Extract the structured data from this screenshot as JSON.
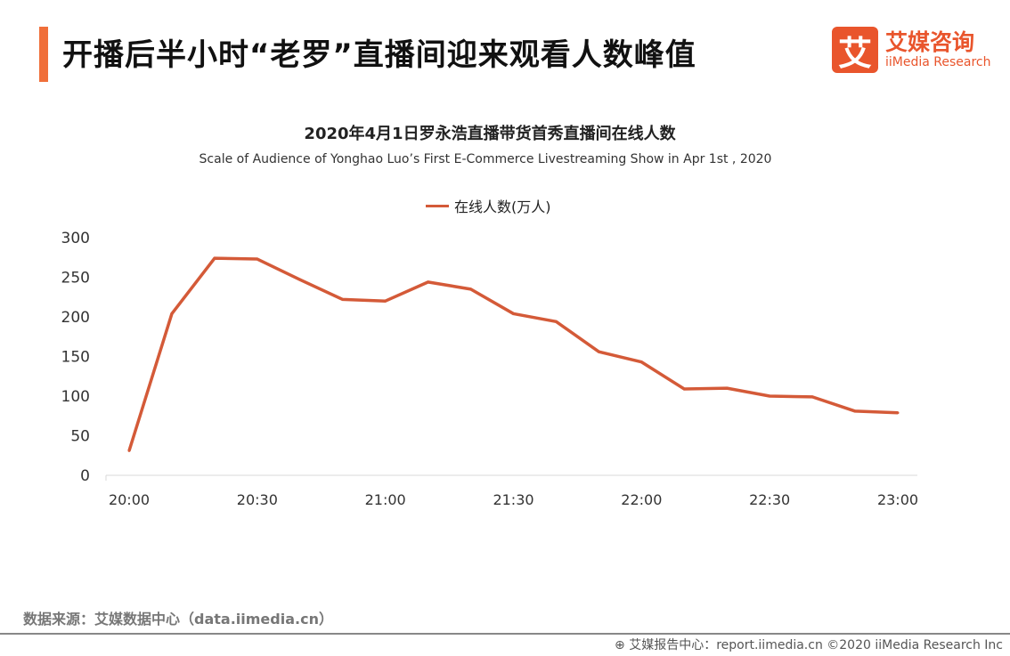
{
  "header": {
    "title": "开播后半小时“老罗”直播间迎来观看人数峰值",
    "logo_mark": "艾",
    "logo_cn": "艾媒咨询",
    "logo_en": "iiMedia Research"
  },
  "chart_data": {
    "type": "line",
    "title": "2020年4月1日罗永浩直播带货首秀直播间在线人数",
    "subtitle": "Scale of Audience of Yonghao Luo’s First E-Commerce Livestreaming Show in Apr 1st , 2020",
    "x": [
      "20:00",
      "20:10",
      "20:20",
      "20:30",
      "20:40",
      "20:50",
      "21:00",
      "21:10",
      "21:20",
      "21:30",
      "21:40",
      "21:50",
      "22:00",
      "22:10",
      "22:20",
      "22:30",
      "22:40",
      "22:50",
      "23:00"
    ],
    "xticks": [
      "20:00",
      "20:30",
      "21:00",
      "21:30",
      "22:00",
      "22:30",
      "23:00"
    ],
    "series": [
      {
        "name": "在线人数(万人)",
        "values": [
          31,
          204,
          274,
          273,
          247,
          222,
          220,
          244,
          235,
          204,
          194,
          156,
          143,
          109,
          110,
          100,
          99,
          81,
          79
        ],
        "color": "#d45a38"
      }
    ],
    "ylim": [
      0,
      300
    ],
    "yticks": [
      0,
      50,
      100,
      150,
      200,
      250,
      300
    ],
    "grid": false,
    "legend": "top-center"
  },
  "footer": {
    "source": "数据来源：艾媒数据中心（data.iimedia.cn）",
    "copyright": "艾媒报告中心：report.iimedia.cn  ©2020  iiMedia Research  Inc"
  }
}
